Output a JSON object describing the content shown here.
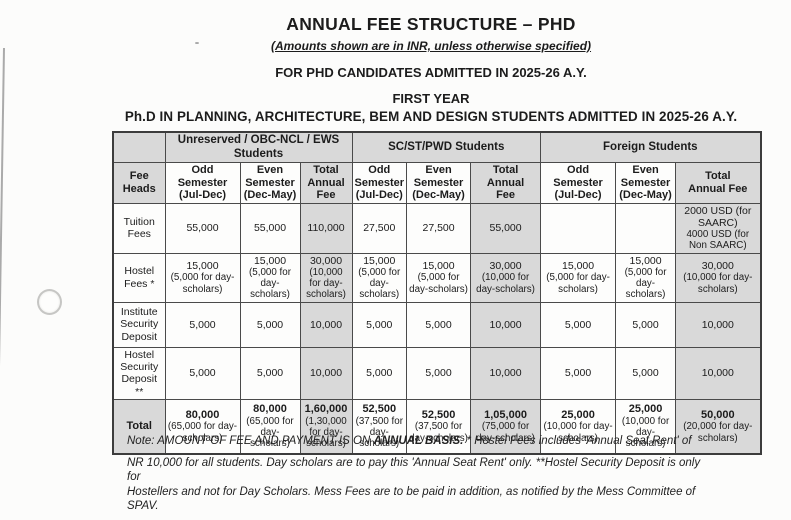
{
  "colors": {
    "paper": "#fcfcfb",
    "ink": "#1c1c1c",
    "shade": "#d9d9d9",
    "border": "#4a4a4a"
  },
  "header": {
    "title": "ANNUAL FEE STRUCTURE – PHD",
    "subtitle": "(Amounts shown are in INR, unless otherwise specified)",
    "admitted_line": "FOR PHD CANDIDATES ADMITTED IN 2025-26 A.Y.",
    "year_line": "FIRST YEAR",
    "program_line": "Ph.D IN PLANNING, ARCHITECTURE, BEM AND DESIGN STUDENTS ADMITTED IN 2025-26 A.Y."
  },
  "table": {
    "fee_heads_label": "Fee Heads",
    "groups": [
      "Unreserved / OBC-NCL / EWS Students",
      "SC/ST/PWD Students",
      "Foreign Students"
    ],
    "sub_headers": [
      [
        "Odd\nSemester\n(Jul-Dec)",
        "Even\nSemester\n(Dec-May)",
        "Total\nAnnual\nFee"
      ],
      [
        "Odd\nSemester\n(Jul-Dec)",
        "Even\nSemester\n(Dec-May)",
        "Total\nAnnual\nFee"
      ],
      [
        "Odd\nSemester\n(Jul-Dec)",
        "Even\nSemester\n(Dec-May)",
        "Total\nAnnual Fee"
      ]
    ],
    "rows": [
      {
        "label": "Tuition Fees",
        "cells": [
          [
            "55,000"
          ],
          [
            "55,000"
          ],
          [
            "110,000"
          ],
          [
            "27,500"
          ],
          [
            "27,500"
          ],
          [
            "55,000"
          ],
          [],
          [],
          [
            "2000 USD (for SAARC)",
            "4000 USD (for Non SAARC)"
          ]
        ]
      },
      {
        "label": "Hostel Fees *",
        "cells": [
          [
            "15,000",
            "(5,000 for day-scholars)"
          ],
          [
            "15,000",
            "(5,000 for day-scholars)"
          ],
          [
            "30,000",
            "(10,000 for day-scholars)"
          ],
          [
            "15,000",
            "(5,000 for day-scholars)"
          ],
          [
            "15,000",
            "(5,000 for day-scholars)"
          ],
          [
            "30,000",
            "(10,000 for day-scholars)"
          ],
          [
            "15,000",
            "(5,000 for day-scholars)"
          ],
          [
            "15,000",
            "(5,000 for day-scholars)"
          ],
          [
            "30,000",
            "(10,000 for day-scholars)"
          ]
        ]
      },
      {
        "label": "Institute Security Deposit",
        "cells": [
          [
            "5,000"
          ],
          [
            "5,000"
          ],
          [
            "10,000"
          ],
          [
            "5,000"
          ],
          [
            "5,000"
          ],
          [
            "10,000"
          ],
          [
            "5,000"
          ],
          [
            "5,000"
          ],
          [
            "10,000"
          ]
        ]
      },
      {
        "label": "Hostel Security Deposit **",
        "cells": [
          [
            "5,000"
          ],
          [
            "5,000"
          ],
          [
            "10,000"
          ],
          [
            "5,000"
          ],
          [
            "5,000"
          ],
          [
            "10,000"
          ],
          [
            "5,000"
          ],
          [
            "5,000"
          ],
          [
            "10,000"
          ]
        ]
      },
      {
        "label": "Total",
        "cells": [
          [
            "80,000",
            "(65,000 for day-scholars)"
          ],
          [
            "80,000",
            "(65,000 for day-scholars)"
          ],
          [
            "1,60,000",
            "(1,30,000 for day-scholars)"
          ],
          [
            "52,500",
            "(37,500 for day-scholars)"
          ],
          [
            "52,500",
            "(37,500 for day-scholars)"
          ],
          [
            "1,05,000",
            "(75,000 for day-scholars)"
          ],
          [
            "25,000",
            "(10,000 for day-scholars)"
          ],
          [
            "25,000",
            "(10,000 for day-scholars)"
          ],
          [
            "50,000",
            "(20,000 for day-scholars)"
          ]
        ]
      }
    ]
  },
  "notes": {
    "note_prefix": "Note: AMOUNT OF FEE AND PAYMENT IS ON ",
    "note_bold": "ANNUAL BASIS.",
    "note_suffix": "  * Hostel Fees includes 'Annual Seat Rent' of",
    "paragraph": "NR 10,000 for all students. Day scholars are to pay this 'Annual Seat Rent' only. **Hostel Security Deposit is only for\nHostellers and not for Day Scholars. Mess Fees are to be paid in addition, as notified by the Mess Committee of\nSPAV.",
    "stray_mark": "I"
  }
}
